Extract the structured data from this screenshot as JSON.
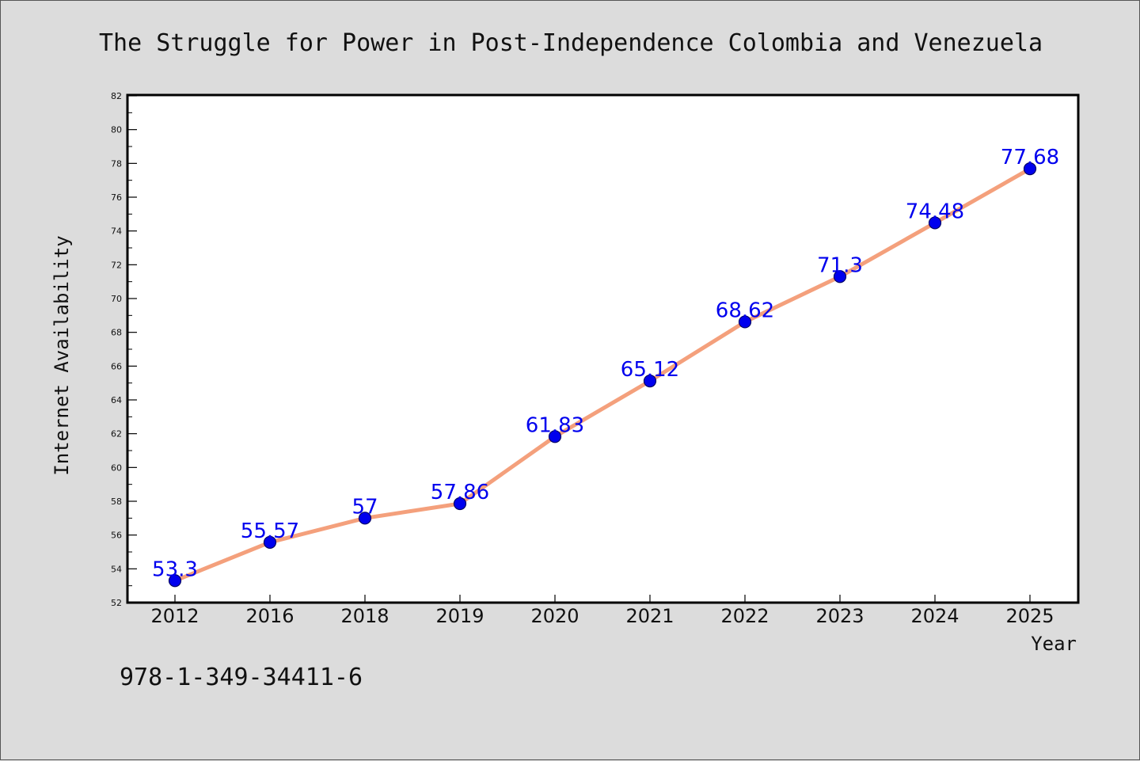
{
  "chart_data": {
    "type": "line",
    "title": "The Struggle for Power in Post-Independence Colombia and Venezuela",
    "xlabel": "Year",
    "ylabel": "Internet Availability",
    "categories": [
      "2012",
      "2016",
      "2018",
      "2019",
      "2020",
      "2021",
      "2022",
      "2023",
      "2024",
      "2025"
    ],
    "series": [
      {
        "values": [
          53.3,
          55.57,
          57,
          57.86,
          61.83,
          65.12,
          68.62,
          71.3,
          74.48,
          77.68
        ],
        "labels": [
          "53.3",
          "55.57",
          "57",
          "57.86",
          "61.83",
          "65.12",
          "68.62",
          "71.3",
          "74.48",
          "77.68"
        ]
      }
    ],
    "ylim": [
      52,
      82
    ],
    "yticks": [
      "52",
      "54",
      "56",
      "58",
      "60",
      "62",
      "64",
      "66",
      "68",
      "70",
      "72",
      "74",
      "76",
      "78",
      "80",
      "82"
    ],
    "grid": false,
    "legend": false
  },
  "footer": {
    "isbn": "978-1-349-34411-6"
  },
  "colors": {
    "line": "#f4a07c",
    "marker": "#0000ee",
    "marker_edge": "#000066",
    "data_label": "#0000ee",
    "background": "#dcdcdc",
    "plot_background": "#ffffff"
  }
}
